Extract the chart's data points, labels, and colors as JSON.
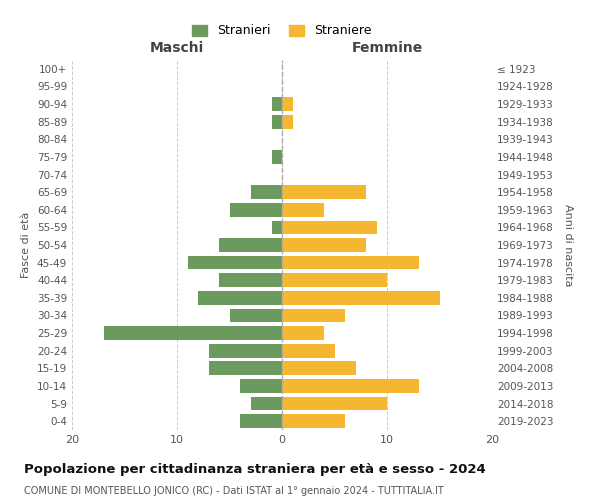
{
  "age_groups": [
    "0-4",
    "5-9",
    "10-14",
    "15-19",
    "20-24",
    "25-29",
    "30-34",
    "35-39",
    "40-44",
    "45-49",
    "50-54",
    "55-59",
    "60-64",
    "65-69",
    "70-74",
    "75-79",
    "80-84",
    "85-89",
    "90-94",
    "95-99",
    "100+"
  ],
  "birth_years": [
    "2019-2023",
    "2014-2018",
    "2009-2013",
    "2004-2008",
    "1999-2003",
    "1994-1998",
    "1989-1993",
    "1984-1988",
    "1979-1983",
    "1974-1978",
    "1969-1973",
    "1964-1968",
    "1959-1963",
    "1954-1958",
    "1949-1953",
    "1944-1948",
    "1939-1943",
    "1934-1938",
    "1929-1933",
    "1924-1928",
    "≤ 1923"
  ],
  "maschi": [
    4,
    3,
    4,
    7,
    7,
    17,
    5,
    8,
    6,
    9,
    6,
    1,
    5,
    3,
    0,
    1,
    0,
    1,
    1,
    0,
    0
  ],
  "femmine": [
    6,
    10,
    13,
    7,
    5,
    4,
    6,
    15,
    10,
    13,
    8,
    9,
    4,
    8,
    0,
    0,
    0,
    1,
    1,
    0,
    0
  ],
  "color_maschi": "#6b9a5e",
  "color_femmine": "#f5b731",
  "title": "Popolazione per cittadinanza straniera per età e sesso - 2024",
  "subtitle": "COMUNE DI MONTEBELLO JONICO (RC) - Dati ISTAT al 1° gennaio 2024 - TUTTITALIA.IT",
  "xlabel_left": "Maschi",
  "xlabel_right": "Femmine",
  "ylabel_left": "Fasce di età",
  "ylabel_right": "Anni di nascita",
  "legend_maschi": "Stranieri",
  "legend_femmine": "Straniere",
  "xlim": 20,
  "background_color": "#ffffff",
  "grid_color": "#cccccc"
}
